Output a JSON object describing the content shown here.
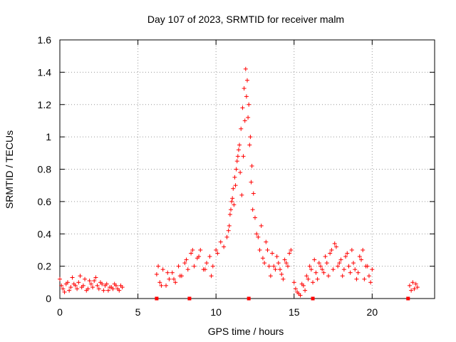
{
  "chart_data": {
    "type": "scatter",
    "title": "Day 107 of 2023, SRMTID for receiver malm",
    "xlabel": "GPS time / hours",
    "ylabel": "SRMTID / TECUs",
    "xlim": [
      0,
      24
    ],
    "ylim": [
      0,
      1.6
    ],
    "xticks": [
      0,
      5,
      10,
      15,
      20
    ],
    "yticks": [
      0,
      0.2,
      0.4,
      0.6,
      0.8,
      1,
      1.2,
      1.4,
      1.6
    ],
    "ytick_labels": [
      "0",
      "0.2",
      "0.4",
      "0.6",
      "0.8",
      "1",
      "1.2",
      "1.4",
      "1.6"
    ],
    "grid": true,
    "marker": "+",
    "color": "#ff0000",
    "series": [
      {
        "name": "SRMTID",
        "x": [
          0.0,
          0.2,
          0.4,
          0.6,
          0.8,
          1.0,
          1.2,
          1.4,
          1.6,
          1.8,
          2.0,
          2.2,
          2.4,
          2.6,
          2.8,
          3.0,
          3.2,
          3.4,
          3.6,
          3.8,
          4.0,
          0.1,
          0.3,
          0.5,
          0.7,
          0.9,
          1.1,
          1.3,
          1.5,
          1.7,
          1.9,
          2.1,
          2.3,
          2.5,
          2.7,
          2.9,
          3.1,
          3.3,
          3.5,
          3.7,
          3.9,
          6.2,
          6.4,
          6.6,
          6.8,
          7.0,
          7.2,
          7.4,
          7.6,
          7.8,
          8.0,
          8.2,
          8.4,
          8.6,
          8.8,
          9.0,
          9.2,
          9.4,
          9.6,
          9.8,
          10.0,
          6.3,
          6.5,
          6.9,
          7.3,
          7.7,
          8.1,
          8.5,
          8.9,
          9.3,
          9.7,
          10.1,
          10.3,
          10.5,
          10.7,
          10.8,
          10.9,
          11.0,
          11.1,
          11.2,
          11.3,
          11.4,
          11.5,
          11.6,
          11.7,
          11.8,
          11.9,
          12.0,
          12.1,
          12.2,
          12.3,
          12.4,
          12.5,
          10.85,
          10.95,
          11.05,
          11.15,
          11.25,
          11.35,
          11.45,
          11.55,
          11.65,
          11.75,
          11.85,
          11.95,
          12.05,
          12.15,
          12.25,
          12.35,
          12.6,
          12.8,
          13.0,
          13.2,
          13.4,
          13.6,
          13.8,
          14.0,
          14.2,
          14.4,
          14.6,
          14.8,
          12.7,
          12.9,
          13.1,
          13.3,
          13.5,
          13.7,
          13.9,
          14.1,
          14.3,
          14.5,
          14.7,
          15.0,
          15.2,
          15.4,
          15.6,
          15.8,
          16.0,
          16.2,
          16.4,
          16.6,
          16.8,
          17.0,
          17.2,
          17.4,
          17.6,
          17.8,
          18.0,
          18.2,
          18.4,
          18.6,
          18.8,
          19.0,
          19.2,
          19.4,
          19.6,
          19.8,
          20.0,
          15.1,
          15.3,
          15.5,
          15.7,
          15.9,
          16.1,
          16.3,
          16.5,
          16.7,
          16.9,
          17.1,
          17.3,
          17.5,
          17.7,
          17.9,
          18.1,
          18.3,
          18.5,
          18.7,
          18.9,
          19.1,
          19.3,
          19.5,
          19.7,
          19.9,
          22.4,
          22.5,
          22.6,
          22.7,
          22.8,
          22.9
        ],
        "y": [
          0.12,
          0.06,
          0.09,
          0.05,
          0.13,
          0.08,
          0.1,
          0.07,
          0.12,
          0.06,
          0.09,
          0.11,
          0.08,
          0.1,
          0.05,
          0.09,
          0.07,
          0.06,
          0.08,
          0.05,
          0.07,
          0.08,
          0.04,
          0.1,
          0.07,
          0.09,
          0.06,
          0.14,
          0.08,
          0.05,
          0.11,
          0.07,
          0.13,
          0.06,
          0.09,
          0.08,
          0.05,
          0.07,
          0.09,
          0.06,
          0.08,
          0.15,
          0.1,
          0.18,
          0.08,
          0.12,
          0.16,
          0.1,
          0.2,
          0.14,
          0.22,
          0.18,
          0.28,
          0.2,
          0.25,
          0.3,
          0.18,
          0.22,
          0.26,
          0.2,
          0.3,
          0.2,
          0.08,
          0.16,
          0.12,
          0.14,
          0.24,
          0.3,
          0.26,
          0.18,
          0.14,
          0.28,
          0.35,
          0.32,
          0.38,
          0.42,
          0.52,
          0.6,
          0.68,
          0.75,
          0.8,
          0.88,
          0.95,
          1.05,
          1.18,
          1.3,
          1.42,
          1.35,
          1.2,
          1.0,
          0.82,
          0.65,
          0.5,
          0.45,
          0.55,
          0.62,
          0.58,
          0.7,
          0.85,
          0.92,
          0.78,
          0.64,
          0.88,
          1.1,
          1.25,
          1.12,
          0.95,
          0.72,
          0.55,
          0.4,
          0.3,
          0.25,
          0.35,
          0.2,
          0.28,
          0.18,
          0.22,
          0.15,
          0.24,
          0.2,
          0.3,
          0.38,
          0.45,
          0.22,
          0.3,
          0.14,
          0.2,
          0.26,
          0.18,
          0.12,
          0.22,
          0.28,
          0.1,
          0.04,
          0.02,
          0.08,
          0.14,
          0.2,
          0.1,
          0.16,
          0.22,
          0.18,
          0.26,
          0.14,
          0.3,
          0.34,
          0.2,
          0.24,
          0.18,
          0.28,
          0.16,
          0.22,
          0.12,
          0.26,
          0.3,
          0.2,
          0.14,
          0.18,
          0.06,
          0.03,
          0.09,
          0.05,
          0.12,
          0.18,
          0.24,
          0.12,
          0.2,
          0.16,
          0.22,
          0.28,
          0.18,
          0.32,
          0.22,
          0.14,
          0.26,
          0.2,
          0.3,
          0.18,
          0.16,
          0.24,
          0.12,
          0.2,
          0.1,
          0.08,
          0.05,
          0.1,
          0.06,
          0.09,
          0.07
        ]
      }
    ],
    "extra_marks": {
      "name": "Data gaps",
      "marker": "square",
      "x": [
        6.2,
        8.3,
        12.1,
        16.2,
        22.3
      ],
      "y": [
        0,
        0,
        0,
        0,
        0
      ]
    }
  }
}
